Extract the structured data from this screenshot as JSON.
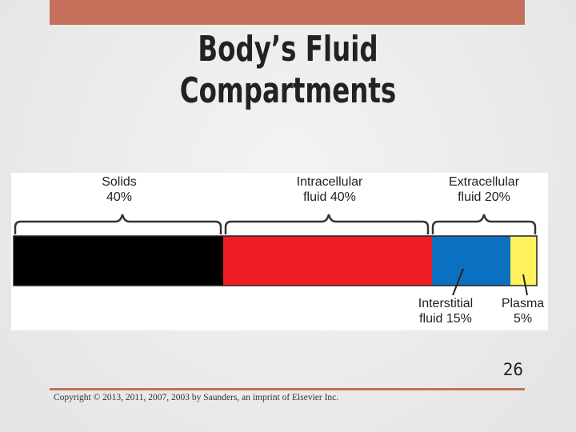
{
  "slide": {
    "title_line1": "Body’s Fluid",
    "title_line2": "Compartments",
    "page_number": "26",
    "copyright": "Copyright © 2013, 2011, 2007, 2003 by Saunders, an imprint of Elsevier Inc."
  },
  "diagram": {
    "segments": [
      {
        "name": "Solids",
        "percent": "40%",
        "value": 40,
        "color": "#000000"
      },
      {
        "name": "Intracellular fluid",
        "percent": "40%",
        "value": 40,
        "color": "#ee1c25"
      },
      {
        "name": "Interstitial fluid",
        "percent": "15%",
        "value": 15,
        "color": "#0c70c0"
      },
      {
        "name": "Plasma",
        "percent": "5%",
        "value": 5,
        "color": "#fef25c"
      }
    ],
    "labels": {
      "solids": "Solids",
      "solids_pct": "40%",
      "intracellular": "Intracellular",
      "intracellular_pct": "fluid 40%",
      "extracellular": "Extracellular",
      "extracellular_pct": "fluid 20%",
      "interstitial": "Interstitial",
      "interstitial_pct": "fluid 15%",
      "plasma": "Plasma",
      "plasma_pct": "5%"
    }
  },
  "colors": {
    "accent": "#c4705a"
  }
}
